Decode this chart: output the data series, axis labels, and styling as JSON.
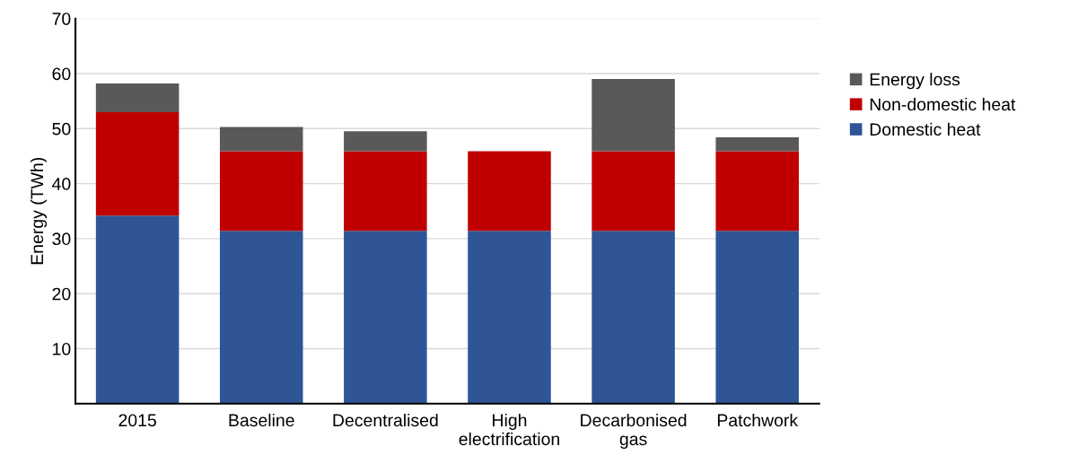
{
  "chart_data": {
    "type": "bar",
    "stacked": true,
    "ylabel": "Energy (TWh)",
    "categories": [
      "2015",
      "Baseline",
      "Decentralised",
      "High\nelectrification",
      "Decarbonised\ngas",
      "Patchwork"
    ],
    "series": [
      {
        "name": "Domestic heat",
        "color": "#2f5597",
        "values": [
          34.2,
          31.4,
          31.4,
          31.4,
          31.4,
          31.4
        ]
      },
      {
        "name": "Non-domestic heat",
        "color": "#c00000",
        "values": [
          18.8,
          14.5,
          14.5,
          14.5,
          14.5,
          14.5
        ]
      },
      {
        "name": "Energy loss",
        "color": "#595959",
        "values": [
          5.2,
          4.4,
          3.6,
          0,
          13.1,
          2.5
        ]
      }
    ],
    "ylim": [
      0,
      70
    ],
    "yticks": [
      10,
      20,
      30,
      40,
      50,
      60,
      70
    ],
    "grid": "y",
    "legend": "top right"
  }
}
